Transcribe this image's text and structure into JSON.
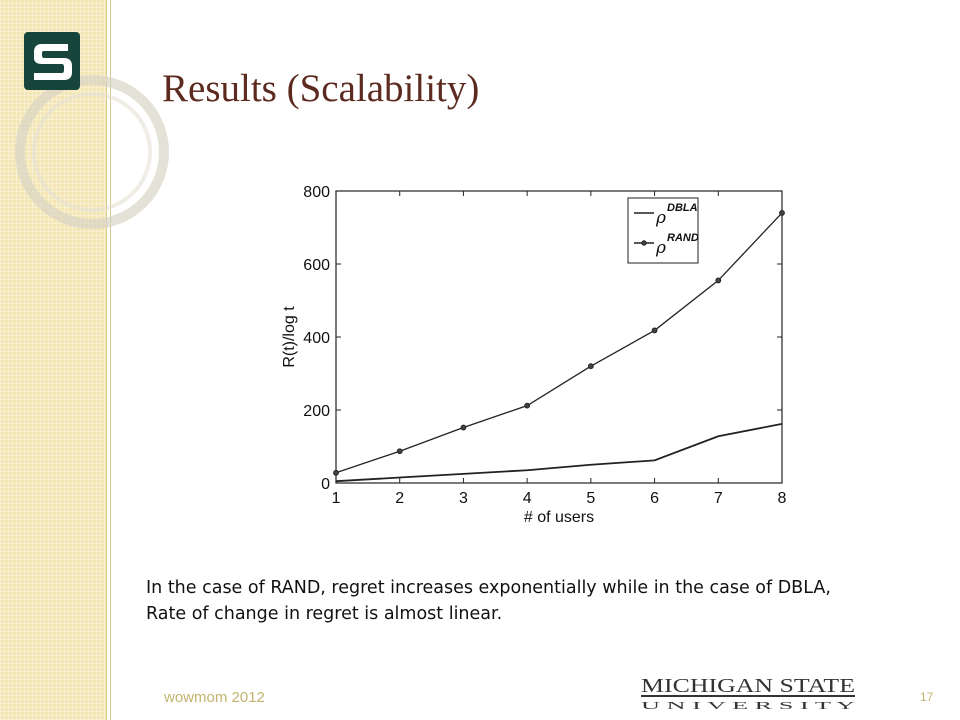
{
  "slide": {
    "title": "Results (Scalability)",
    "caption_line1": "In the case of RAND, regret increases exponentially while in the case of DBLA,",
    "caption_line2": "Rate of change in regret is almost linear.",
    "footer_left": "wowmom 2012",
    "page_number": "17",
    "university_line1": "MICHIGAN STATE",
    "university_line2": "U N I V E R S I T Y",
    "logo_letter": "S",
    "colors": {
      "title": "#5c2a1f",
      "band": "#f3e6b4",
      "msu_green": "#18453b",
      "footer": "#c2b46e"
    }
  },
  "chart_data": {
    "type": "line",
    "x": [
      1,
      2,
      3,
      4,
      5,
      6,
      7,
      8
    ],
    "xlabel": "# of users",
    "ylabel": "R(t)/log t",
    "xlim": [
      1,
      8
    ],
    "ylim": [
      0,
      800
    ],
    "xticks": [
      "1",
      "2",
      "3",
      "4",
      "5",
      "6",
      "7",
      "8"
    ],
    "yticks": [
      "0",
      "200",
      "400",
      "600",
      "800"
    ],
    "legend_position": "top-right",
    "series": [
      {
        "name_base": "ρ",
        "name_sup": "DBLA",
        "markers": false,
        "values": [
          5,
          15,
          25,
          35,
          50,
          62,
          128,
          162
        ]
      },
      {
        "name_base": "ρ",
        "name_sup": "RAND",
        "markers": true,
        "values": [
          28,
          87,
          152,
          212,
          320,
          418,
          555,
          740
        ]
      }
    ]
  }
}
